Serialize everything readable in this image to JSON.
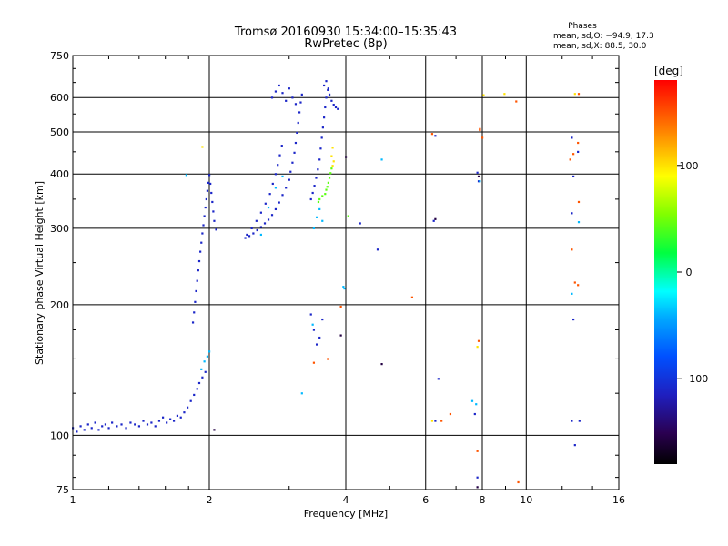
{
  "chart_data": {
    "type": "scatter",
    "title": "Tromsø 20160930 15:34:00–15:35:43",
    "subtitle": "RwPretec (8p)",
    "xlabel": "Frequency [MHz]",
    "ylabel": "Stationary phase Virtual Height [km]",
    "x_scale": "log",
    "y_scale": "log",
    "xlim": [
      1,
      16
    ],
    "ylim": [
      75,
      750
    ],
    "x_ticks": [
      1,
      2,
      4,
      6,
      8,
      10,
      16
    ],
    "y_ticks": [
      75,
      100,
      200,
      300,
      400,
      500,
      600,
      750
    ],
    "grid": true,
    "stats": {
      "heading": "Phases",
      "line_o": "mean, sd,O: −94.9, 17.3",
      "line_x": "mean, sd,X:  88.5, 30.0"
    },
    "colorbar": {
      "label": "[deg]",
      "range": [
        -180,
        180
      ],
      "ticks": [
        100,
        0,
        -100
      ]
    },
    "series": [
      {
        "phase_deg": -110,
        "points": [
          [
            1.0,
            104
          ],
          [
            1.02,
            102
          ],
          [
            1.04,
            105
          ],
          [
            1.06,
            103
          ],
          [
            1.08,
            106
          ],
          [
            1.1,
            104
          ],
          [
            1.12,
            107
          ],
          [
            1.14,
            103
          ],
          [
            1.16,
            105
          ],
          [
            1.18,
            106
          ],
          [
            1.2,
            104
          ],
          [
            1.22,
            107
          ],
          [
            1.25,
            105
          ],
          [
            1.28,
            106
          ],
          [
            1.31,
            104
          ],
          [
            1.34,
            107
          ],
          [
            1.37,
            106
          ],
          [
            1.4,
            105
          ],
          [
            1.43,
            108
          ],
          [
            1.46,
            106
          ],
          [
            1.49,
            107
          ],
          [
            1.52,
            105
          ],
          [
            1.55,
            108
          ],
          [
            1.58,
            110
          ],
          [
            1.61,
            107
          ],
          [
            1.64,
            109
          ],
          [
            1.67,
            108
          ],
          [
            1.7,
            111
          ],
          [
            1.73,
            110
          ],
          [
            1.76,
            113
          ],
          [
            1.79,
            116
          ],
          [
            1.82,
            120
          ],
          [
            1.85,
            124
          ],
          [
            1.88,
            128
          ],
          [
            1.9,
            132
          ],
          [
            1.93,
            136
          ],
          [
            1.96,
            140
          ],
          [
            1.84,
            182
          ],
          [
            1.85,
            192
          ],
          [
            1.86,
            203
          ],
          [
            1.87,
            215
          ],
          [
            1.88,
            227
          ],
          [
            1.89,
            240
          ],
          [
            1.9,
            252
          ],
          [
            1.91,
            265
          ],
          [
            1.92,
            278
          ],
          [
            1.93,
            292
          ],
          [
            1.94,
            305
          ],
          [
            1.95,
            320
          ],
          [
            1.96,
            335
          ],
          [
            1.97,
            350
          ],
          [
            1.98,
            366
          ],
          [
            1.99,
            382
          ],
          [
            2.0,
            398
          ],
          [
            2.01,
            380
          ],
          [
            2.02,
            362
          ],
          [
            2.03,
            345
          ],
          [
            2.04,
            328
          ],
          [
            2.05,
            312
          ],
          [
            2.07,
            298
          ],
          [
            2.4,
            285
          ],
          [
            2.45,
            288
          ],
          [
            2.5,
            292
          ],
          [
            2.55,
            297
          ],
          [
            2.6,
            302
          ],
          [
            2.65,
            308
          ],
          [
            2.7,
            314
          ],
          [
            2.75,
            322
          ],
          [
            2.8,
            332
          ],
          [
            2.85,
            344
          ],
          [
            2.9,
            358
          ],
          [
            2.95,
            372
          ],
          [
            3.0,
            388
          ],
          [
            3.02,
            405
          ],
          [
            3.05,
            425
          ],
          [
            3.08,
            448
          ],
          [
            3.1,
            472
          ],
          [
            3.12,
            498
          ],
          [
            3.14,
            525
          ],
          [
            3.16,
            555
          ],
          [
            3.18,
            585
          ],
          [
            3.2,
            610
          ],
          [
            2.42,
            290
          ],
          [
            2.48,
            300
          ],
          [
            2.54,
            312
          ],
          [
            2.6,
            326
          ],
          [
            2.66,
            342
          ],
          [
            2.72,
            360
          ],
          [
            2.76,
            380
          ],
          [
            2.8,
            400
          ],
          [
            2.83,
            420
          ],
          [
            2.86,
            442
          ],
          [
            2.89,
            465
          ],
          [
            2.75,
            600
          ],
          [
            2.8,
            620
          ],
          [
            2.85,
            640
          ],
          [
            2.9,
            615
          ],
          [
            2.95,
            590
          ],
          [
            3.0,
            630
          ],
          [
            3.05,
            600
          ],
          [
            3.1,
            580
          ],
          [
            3.35,
            350
          ],
          [
            3.38,
            362
          ],
          [
            3.41,
            376
          ],
          [
            3.44,
            392
          ],
          [
            3.47,
            410
          ],
          [
            3.5,
            432
          ],
          [
            3.52,
            458
          ],
          [
            3.54,
            485
          ],
          [
            3.56,
            512
          ],
          [
            3.58,
            540
          ],
          [
            3.6,
            570
          ],
          [
            3.62,
            600
          ],
          [
            3.65,
            625
          ],
          [
            3.68,
            610
          ],
          [
            3.72,
            590
          ],
          [
            3.76,
            578
          ],
          [
            3.8,
            570
          ],
          [
            3.84,
            565
          ],
          [
            3.58,
            640
          ],
          [
            3.62,
            655
          ],
          [
            3.66,
            630
          ],
          [
            3.35,
            190
          ],
          [
            3.4,
            175
          ],
          [
            3.45,
            162
          ],
          [
            3.5,
            168
          ],
          [
            3.55,
            185
          ],
          [
            4.3,
            308
          ],
          [
            4.7,
            268
          ],
          [
            6.25,
            312
          ],
          [
            6.3,
            490
          ],
          [
            7.8,
            403
          ],
          [
            7.85,
            385
          ],
          [
            6.4,
            135
          ],
          [
            6.3,
            108
          ],
          [
            7.7,
            112
          ],
          [
            7.8,
            80
          ],
          [
            12.6,
            325
          ],
          [
            12.7,
            395
          ],
          [
            12.6,
            485
          ],
          [
            13.0,
            450
          ],
          [
            12.7,
            185
          ],
          [
            12.6,
            108
          ],
          [
            13.1,
            108
          ],
          [
            12.8,
            95
          ]
        ]
      },
      {
        "phase_deg": -40,
        "points": [
          [
            1.92,
            142
          ],
          [
            1.95,
            148
          ],
          [
            1.98,
            152
          ],
          [
            2.0,
            156
          ],
          [
            2.6,
            290
          ],
          [
            2.7,
            335
          ],
          [
            2.8,
            372
          ],
          [
            2.9,
            395
          ],
          [
            3.4,
            300
          ],
          [
            3.45,
            318
          ],
          [
            3.5,
            332
          ],
          [
            3.55,
            312
          ],
          [
            3.38,
            180
          ],
          [
            4.8,
            432
          ],
          [
            3.95,
            220
          ],
          [
            3.97,
            218
          ],
          [
            7.9,
            385
          ],
          [
            7.75,
            118
          ],
          [
            7.6,
            120
          ],
          [
            13.05,
            310
          ],
          [
            12.6,
            212
          ],
          [
            3.2,
            125
          ],
          [
            1.78,
            398
          ]
        ]
      },
      {
        "phase_deg": 40,
        "points": [
          [
            3.6,
            360
          ],
          [
            3.62,
            368
          ],
          [
            3.64,
            374
          ],
          [
            3.66,
            382
          ],
          [
            3.68,
            392
          ],
          [
            3.7,
            402
          ],
          [
            3.72,
            412
          ],
          [
            3.5,
            350
          ],
          [
            3.55,
            356
          ],
          [
            3.48,
            345
          ],
          [
            4.05,
            320
          ]
        ]
      },
      {
        "phase_deg": 100,
        "points": [
          [
            3.74,
            418
          ],
          [
            3.76,
            428
          ],
          [
            3.72,
            440
          ],
          [
            3.74,
            460
          ],
          [
            1.93,
            462
          ],
          [
            8.05,
            608
          ],
          [
            8.95,
            612
          ],
          [
            12.8,
            612
          ],
          [
            6.2,
            108
          ],
          [
            7.8,
            160
          ]
        ]
      },
      {
        "phase_deg": 150,
        "points": [
          [
            6.2,
            495
          ],
          [
            7.9,
            508
          ],
          [
            9.5,
            588
          ],
          [
            12.5,
            432
          ],
          [
            13.0,
            472
          ],
          [
            13.05,
            612
          ],
          [
            13.05,
            345
          ],
          [
            12.6,
            268
          ],
          [
            12.8,
            225
          ],
          [
            13.0,
            222
          ],
          [
            5.6,
            208
          ],
          [
            3.9,
            198
          ],
          [
            3.4,
            147
          ],
          [
            3.65,
            150
          ],
          [
            7.8,
            92
          ],
          [
            9.6,
            78
          ],
          [
            6.8,
            112
          ],
          [
            6.5,
            108
          ],
          [
            12.7,
            445
          ],
          [
            7.9,
            505
          ],
          [
            7.85,
            165
          ],
          [
            8.0,
            485
          ]
        ]
      },
      {
        "phase_deg": -155,
        "points": [
          [
            3.9,
            170
          ],
          [
            4.8,
            146
          ],
          [
            6.3,
            315
          ],
          [
            7.85,
            395
          ],
          [
            7.8,
            76
          ],
          [
            2.05,
            103
          ],
          [
            4.0,
            438
          ]
        ]
      }
    ]
  }
}
